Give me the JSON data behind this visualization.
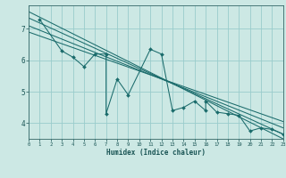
{
  "xlabel": "Humidex (Indice chaleur)",
  "bg_color": "#cce8e4",
  "grid_color": "#99cccc",
  "line_color": "#1a6b6b",
  "xlim": [
    0,
    23
  ],
  "ylim": [
    3.5,
    7.75
  ],
  "yticks": [
    4,
    5,
    6,
    7
  ],
  "xticks": [
    0,
    1,
    2,
    3,
    4,
    5,
    6,
    7,
    8,
    9,
    10,
    11,
    12,
    13,
    14,
    15,
    16,
    17,
    18,
    19,
    20,
    21,
    22,
    23
  ],
  "scatter_x": [
    1,
    3,
    4,
    5,
    6,
    7,
    7,
    8,
    9,
    11,
    12,
    13,
    14,
    15,
    16,
    16,
    17,
    18,
    19,
    20,
    21,
    22,
    23
  ],
  "scatter_y": [
    7.3,
    6.3,
    6.1,
    5.8,
    6.2,
    6.2,
    4.3,
    5.4,
    4.9,
    6.35,
    6.2,
    4.4,
    4.5,
    4.7,
    4.4,
    4.7,
    4.35,
    4.3,
    4.25,
    3.75,
    3.85,
    3.8,
    3.65
  ],
  "reg_lines": [
    {
      "x": [
        0,
        23
      ],
      "y": [
        7.55,
        3.5
      ]
    },
    {
      "x": [
        0,
        23
      ],
      "y": [
        7.35,
        3.65
      ]
    },
    {
      "x": [
        0,
        23
      ],
      "y": [
        7.1,
        3.85
      ]
    },
    {
      "x": [
        0,
        23
      ],
      "y": [
        6.9,
        4.05
      ]
    }
  ]
}
